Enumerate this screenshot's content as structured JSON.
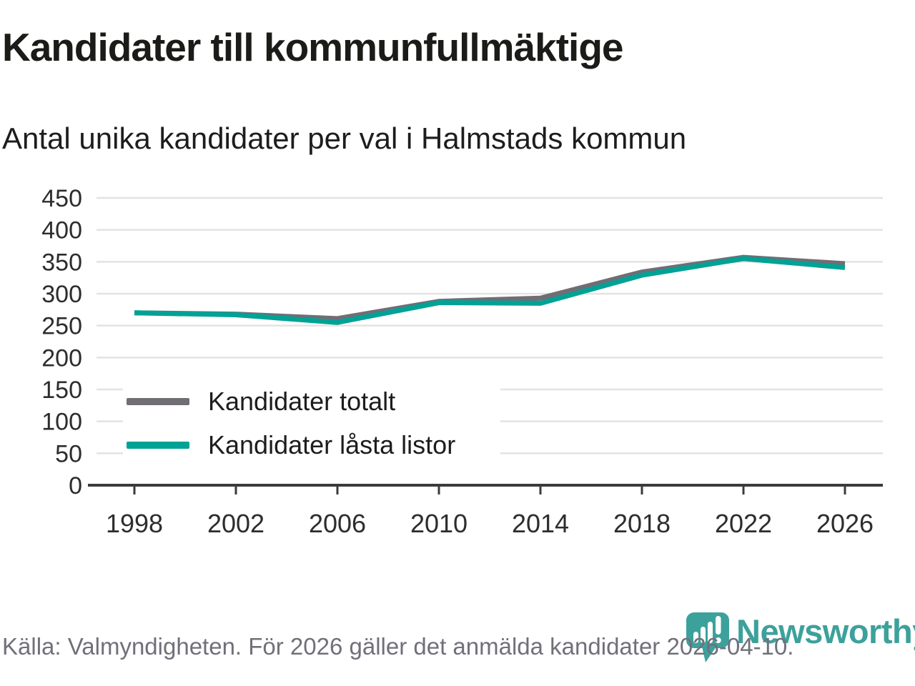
{
  "title": "Kandidater till kommunfullmäktige",
  "subtitle": "Antal unika kandidater per val i Halmstads kommun",
  "source_note": "Källa: Valmyndigheten. För 2026 gäller det anmälda kandidater 2026-04-10.",
  "logo": {
    "brand": "Newsworthy",
    "color": "#3da19b"
  },
  "colors": {
    "series_total": "#716d74",
    "series_locked": "#00a296",
    "grid": "#e3e3e3",
    "axis": "#3b3b3b",
    "tick_text": "#2d2d2d",
    "muted_text": "#70707a",
    "background": "#ffffff"
  },
  "chart_data": {
    "type": "line",
    "title": "Kandidater till kommunfullmäktige",
    "subtitle": "Antal unika kandidater per val i Halmstads kommun",
    "x": [
      1998,
      2002,
      2006,
      2010,
      2014,
      2018,
      2022,
      2026
    ],
    "xticklabels": [
      "1998",
      "2002",
      "2006",
      "2010",
      "2014",
      "2018",
      "2022",
      "2026"
    ],
    "series": [
      {
        "name": "Kandidater totalt",
        "color": "#716d74",
        "values": [
          270,
          268,
          261,
          288,
          293,
          334,
          357,
          347
        ]
      },
      {
        "name": "Kandidater låsta listor",
        "color": "#00a296",
        "values": [
          270,
          267,
          255,
          286,
          285,
          329,
          355,
          341
        ]
      }
    ],
    "xlabel": "",
    "ylabel": "",
    "ylim": [
      0,
      450
    ],
    "ytick_step": 50,
    "yticks": [
      0,
      50,
      100,
      150,
      200,
      250,
      300,
      350,
      400,
      450
    ],
    "grid": "horizontal",
    "legend_position": "inside-left"
  }
}
